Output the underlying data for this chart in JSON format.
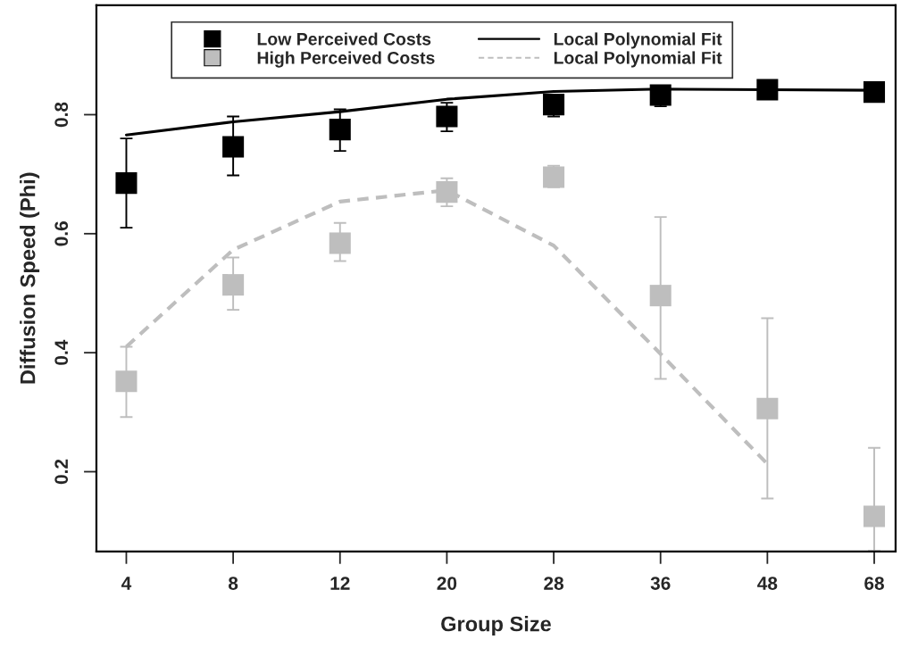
{
  "chart_data": {
    "type": "scatter",
    "xlabel": "Group Size",
    "ylabel": "Diffusion Speed (Phi)",
    "categories": [
      "4",
      "8",
      "12",
      "20",
      "28",
      "36",
      "48",
      "68"
    ],
    "ylim": [
      0.066,
      0.984
    ],
    "yticks": [
      0.2,
      0.4,
      0.6,
      0.8
    ],
    "grid": false,
    "legend": "top",
    "series": [
      {
        "name": "Low Perceived Costs",
        "marker": "square",
        "color": "#000000",
        "values": [
          0.685,
          0.746,
          0.775,
          0.797,
          0.817,
          0.833,
          0.842,
          0.838
        ],
        "errors": [
          [
            0.61,
            0.76
          ],
          [
            0.698,
            0.797
          ],
          [
            0.739,
            0.809
          ],
          [
            0.772,
            0.82
          ],
          [
            0.797,
            0.832
          ],
          [
            0.814,
            0.848
          ],
          null,
          null
        ]
      },
      {
        "name": "High Perceived Costs",
        "marker": "square",
        "color": "#bebebe",
        "values": [
          0.352,
          0.514,
          0.584,
          0.67,
          0.695,
          0.496,
          0.306,
          0.125
        ],
        "errors": [
          [
            0.292,
            0.41
          ],
          [
            0.472,
            0.56
          ],
          [
            0.554,
            0.618
          ],
          [
            0.646,
            0.693
          ],
          [
            0.678,
            0.714
          ],
          [
            0.356,
            0.628
          ],
          [
            0.155,
            0.458
          ],
          [
            0.067,
            0.24
          ]
        ]
      },
      {
        "name": "Local Polynomial Fit",
        "type": "line",
        "line_style": "solid",
        "color": "#000000",
        "values": [
          0.766,
          0.788,
          0.805,
          0.826,
          0.839,
          0.843,
          0.842,
          0.841
        ]
      },
      {
        "name": "Local Polynomial Fit",
        "type": "line",
        "line_style": "dashed",
        "color": "#bebebe",
        "values": [
          0.41,
          0.573,
          0.654,
          0.673,
          0.58,
          0.398,
          0.213,
          null
        ]
      }
    ]
  }
}
